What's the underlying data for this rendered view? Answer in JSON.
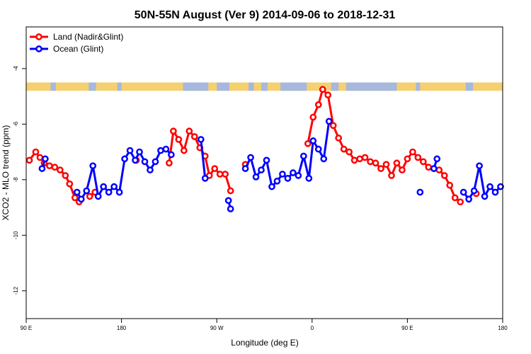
{
  "chart_data": {
    "type": "line",
    "title": "50N-55N August (Ver 9)   2014-09-06 to 2018-12-31",
    "xlabel": "Longitude (deg E)",
    "ylabel": "XCO2 - MLO trend (ppm)",
    "x_ticks": [
      {
        "value": 90,
        "label": "90 E"
      },
      {
        "value": 180,
        "label": "180"
      },
      {
        "value": 270,
        "label": "90 W"
      },
      {
        "value": 360,
        "label": "0"
      },
      {
        "value": 450,
        "label": "90 E"
      },
      {
        "value": 540,
        "label": "180"
      }
    ],
    "y_ticks": [
      -4,
      -6,
      -8,
      -10,
      -12
    ],
    "xlim": [
      90,
      540
    ],
    "ylim": [
      -13,
      -2.5
    ],
    "grid": false,
    "legend_position": "top-left",
    "colors": {
      "land": "#ff0000",
      "ocean": "#0000ff",
      "land_strip": "#f5d070",
      "ocean_strip": "#a7b8dd"
    },
    "series": [
      {
        "name": "Land (Nadir&Glint)",
        "color": "#ff0000",
        "points": [
          [
            93,
            -7.3
          ],
          [
            99,
            -7.0
          ],
          [
            103,
            -7.2
          ],
          [
            107,
            -7.4
          ],
          [
            112,
            -7.5
          ],
          [
            117,
            -7.55
          ],
          [
            122,
            -7.65
          ],
          [
            127,
            -7.85
          ],
          [
            131,
            -8.15
          ],
          [
            136,
            -8.65
          ],
          [
            140,
            -8.8
          ],
          [
            150,
            -8.6
          ],
          [
            155,
            -8.45
          ],
          [
            194,
            -7.3
          ],
          [
            225,
            -7.4
          ],
          [
            229,
            -6.25
          ],
          [
            234,
            -6.55
          ],
          [
            239,
            -6.95
          ],
          [
            244,
            -6.25
          ],
          [
            249,
            -6.45
          ],
          [
            254,
            -6.85
          ],
          [
            259,
            -7.15
          ],
          [
            263,
            -7.85
          ],
          [
            268,
            -7.6
          ],
          [
            273,
            -7.8
          ],
          [
            278,
            -7.8
          ],
          [
            283,
            -8.4
          ],
          [
            297,
            -7.45
          ],
          [
            356,
            -6.7
          ],
          [
            361,
            -5.75
          ],
          [
            366,
            -5.3
          ],
          [
            370,
            -4.75
          ],
          [
            375,
            -4.95
          ],
          [
            380,
            -6.05
          ],
          [
            385,
            -6.5
          ],
          [
            390,
            -6.9
          ],
          [
            395,
            -7.0
          ],
          [
            400,
            -7.3
          ],
          [
            405,
            -7.25
          ],
          [
            410,
            -7.2
          ],
          [
            415,
            -7.35
          ],
          [
            420,
            -7.4
          ],
          [
            425,
            -7.6
          ],
          [
            430,
            -7.45
          ],
          [
            435,
            -7.85
          ],
          [
            440,
            -7.4
          ],
          [
            445,
            -7.65
          ],
          [
            450,
            -7.25
          ],
          [
            455,
            -7.0
          ],
          [
            460,
            -7.2
          ],
          [
            465,
            -7.35
          ],
          [
            470,
            -7.55
          ],
          [
            475,
            -7.6
          ],
          [
            480,
            -7.65
          ],
          [
            485,
            -7.85
          ],
          [
            490,
            -8.2
          ],
          [
            495,
            -8.65
          ],
          [
            500,
            -8.8
          ],
          [
            515,
            -8.5
          ]
        ]
      },
      {
        "name": "Ocean (Glint)",
        "color": "#0000ff",
        "points": [
          [
            105,
            -7.6
          ],
          [
            108,
            -7.25
          ],
          [
            138,
            -8.45
          ],
          [
            142,
            -8.7
          ],
          [
            147,
            -8.4
          ],
          [
            153,
            -7.5
          ],
          [
            158,
            -8.6
          ],
          [
            163,
            -8.25
          ],
          [
            168,
            -8.45
          ],
          [
            173,
            -8.25
          ],
          [
            178,
            -8.45
          ],
          [
            183,
            -7.25
          ],
          [
            188,
            -6.95
          ],
          [
            193,
            -7.3
          ],
          [
            197,
            -7.0
          ],
          [
            202,
            -7.35
          ],
          [
            207,
            -7.65
          ],
          [
            212,
            -7.35
          ],
          [
            217,
            -6.95
          ],
          [
            222,
            -6.9
          ],
          [
            227,
            -7.1
          ],
          [
            255,
            -6.55
          ],
          [
            259,
            -7.95
          ],
          [
            281,
            -8.75
          ],
          [
            283,
            -9.05
          ],
          [
            297,
            -7.6
          ],
          [
            302,
            -7.2
          ],
          [
            307,
            -7.9
          ],
          [
            312,
            -7.65
          ],
          [
            317,
            -7.3
          ],
          [
            322,
            -8.25
          ],
          [
            327,
            -8.05
          ],
          [
            332,
            -7.8
          ],
          [
            337,
            -7.95
          ],
          [
            342,
            -7.75
          ],
          [
            347,
            -7.85
          ],
          [
            352,
            -7.15
          ],
          [
            357,
            -7.95
          ],
          [
            361,
            -6.6
          ],
          [
            366,
            -6.9
          ],
          [
            371,
            -7.25
          ],
          [
            376,
            -5.9
          ],
          [
            475,
            -7.6
          ],
          [
            478,
            -7.25
          ],
          [
            503,
            -8.45
          ],
          [
            508,
            -8.7
          ],
          [
            513,
            -8.4
          ],
          [
            518,
            -7.5
          ],
          [
            523,
            -8.6
          ],
          [
            528,
            -8.25
          ],
          [
            533,
            -8.45
          ],
          [
            538,
            -8.25
          ]
        ]
      },
      {
        "name": "",
        "color": "#0000ff",
        "points": [
          [
            462,
            -8.45
          ]
        ]
      }
    ]
  }
}
